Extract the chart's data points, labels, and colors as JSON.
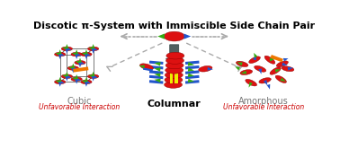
{
  "title": "Discotic π-System with Immiscible Side Chain Pair",
  "title_fontsize": 8.0,
  "title_fontweight": "bold",
  "bg_color": "#ffffff",
  "label_cubic": "Cubic",
  "label_columnar": "Columnar",
  "label_amorphous": "Amorphous",
  "label_unfav1": "Unfavorable Interaction",
  "label_unfav2": "Unfavorable Interaction",
  "label_color_unfav": "#cc0000",
  "label_color_cubic": "#777777",
  "label_color_columnar": "#000000",
  "label_color_amorphous": "#777777",
  "label_fontsize_main": 7.0,
  "label_fontsize_unfav": 5.5,
  "dashed_color": "#aaaaaa",
  "red_disc": "#dd1111",
  "green_cone": "#33aa11",
  "blue_cone": "#2255cc",
  "orange_bar": "#ee7700",
  "yellow_bar": "#eeee00"
}
